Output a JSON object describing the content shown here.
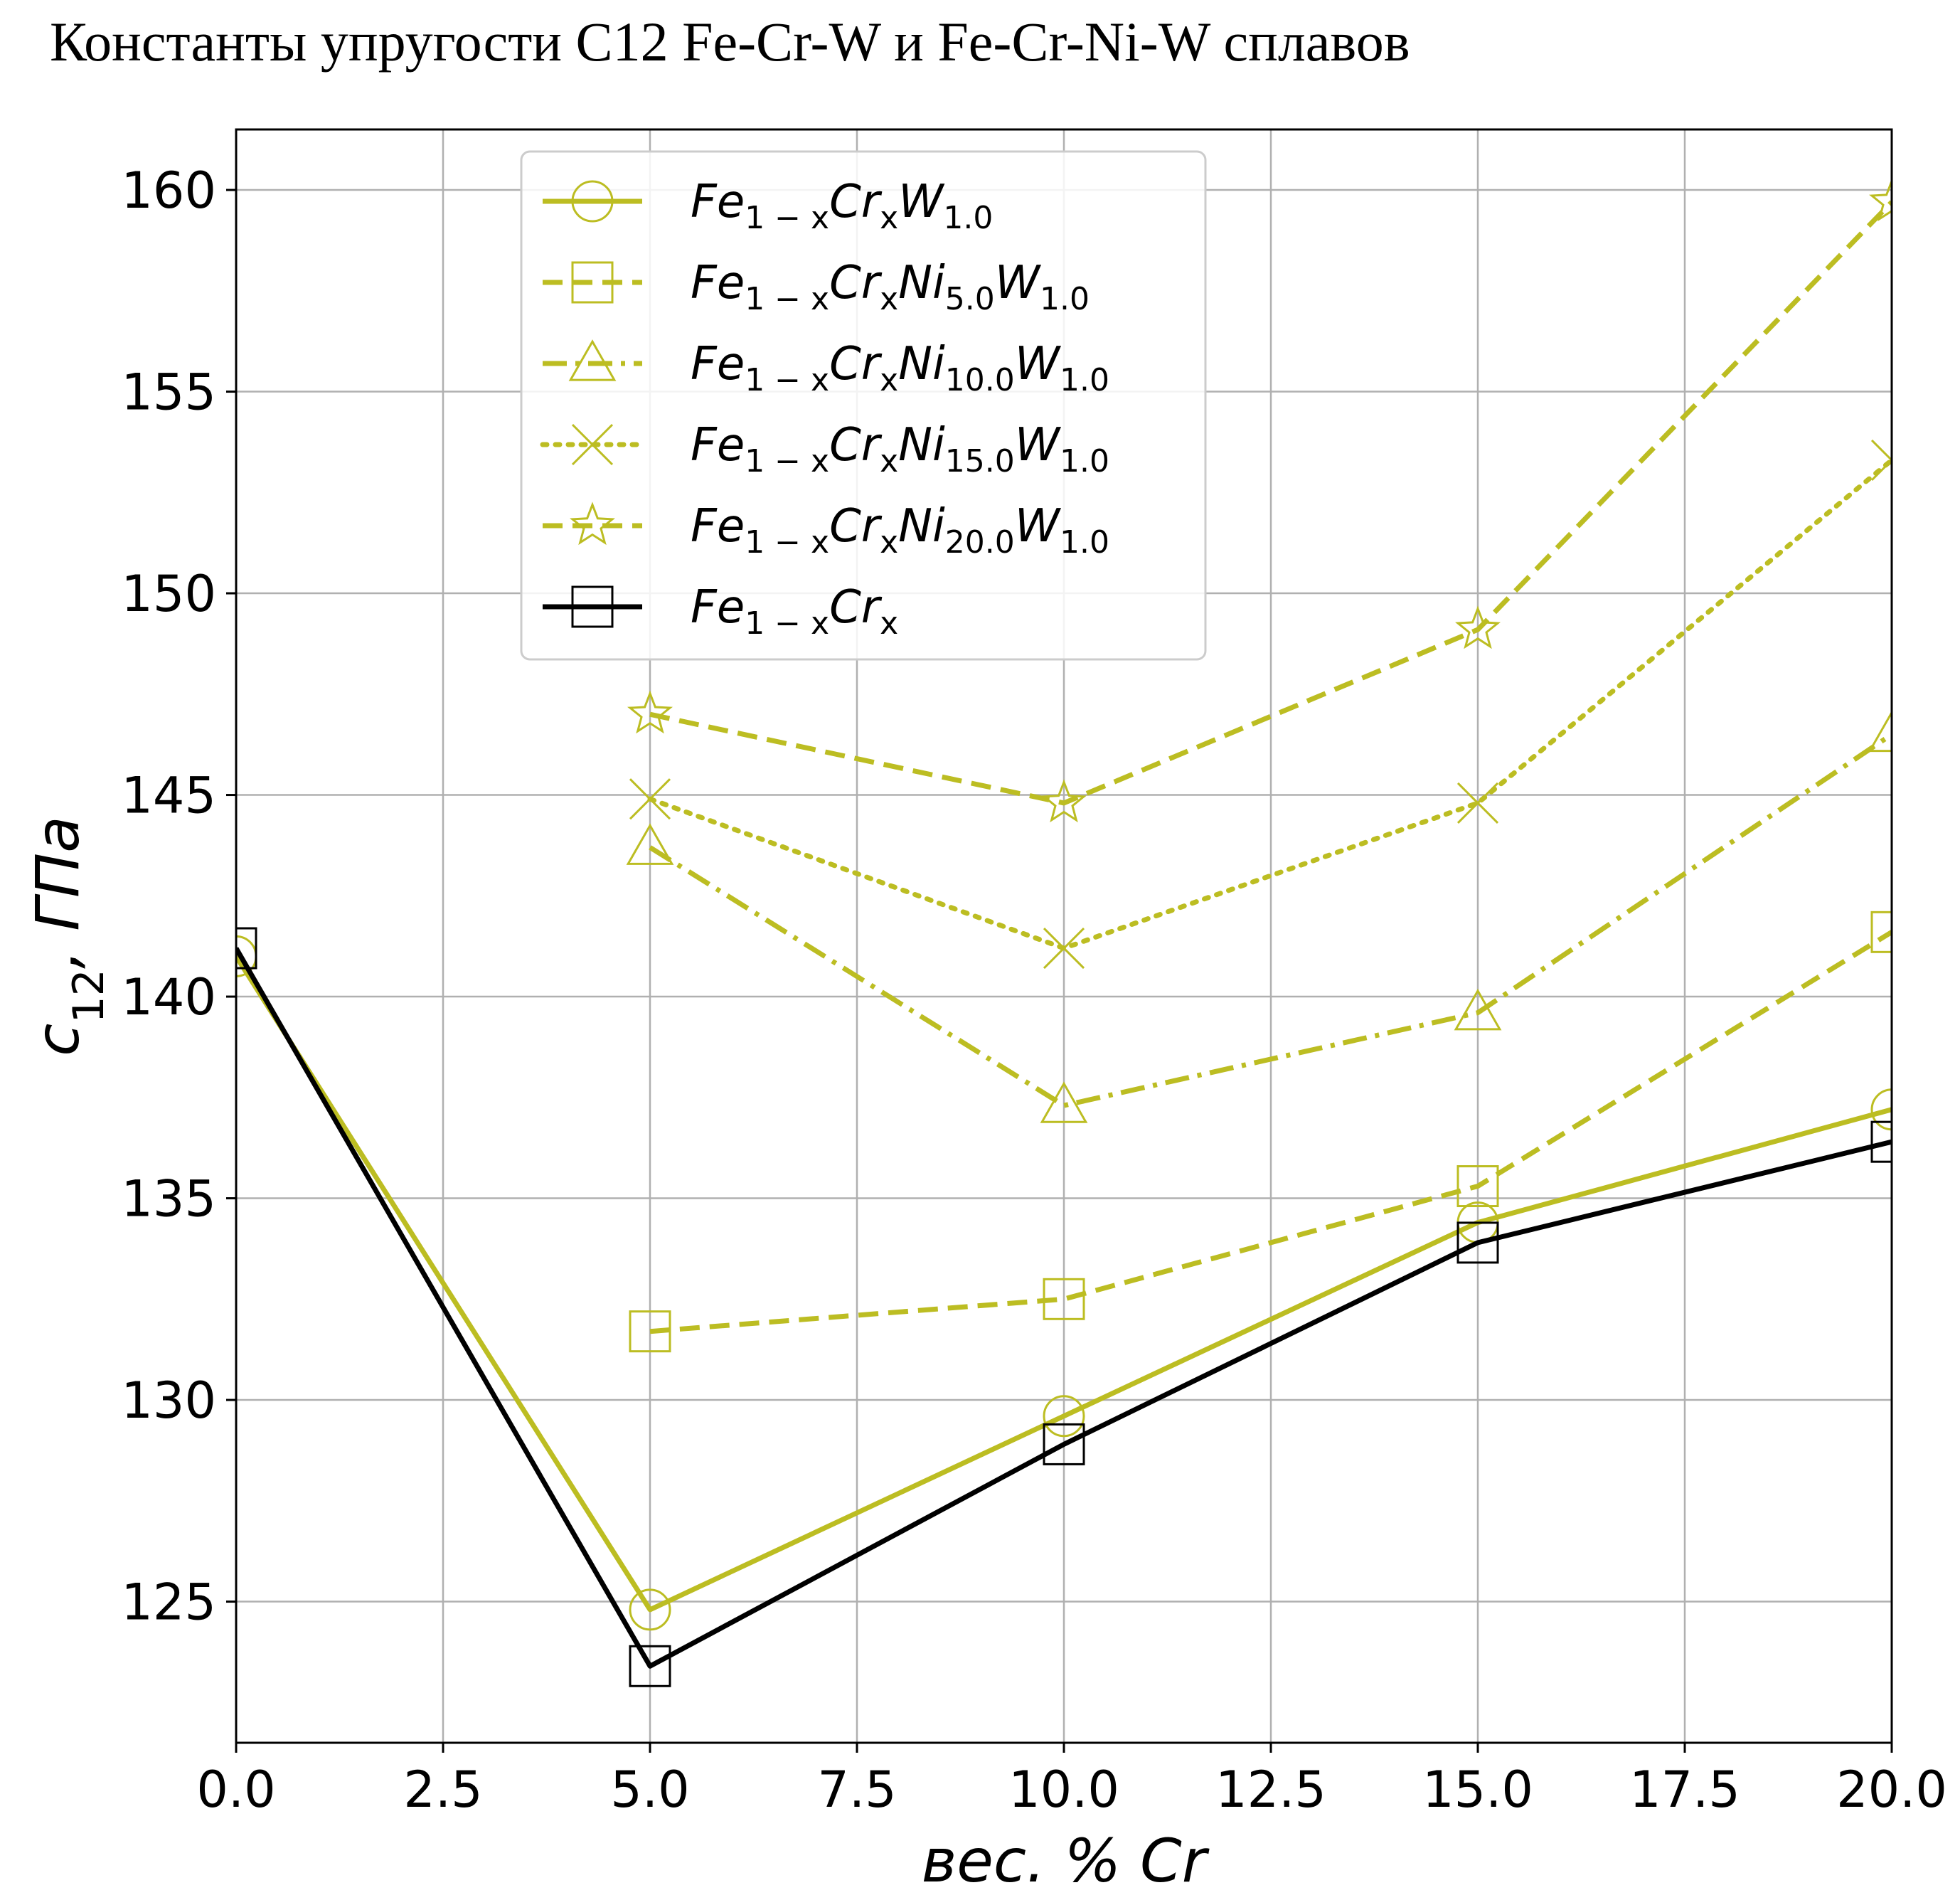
{
  "chart_data": {
    "type": "line",
    "title": "Константы упругости C12 Fe-Cr-W и Fe-Cr-Ni-W сплавов",
    "xlabel": "вес. % Cr",
    "ylabel": {
      "base": "c",
      "sub": "12",
      "rest": ",  ГПа"
    },
    "xlim": [
      0,
      20
    ],
    "ylim": [
      121.5,
      161.5
    ],
    "xticks": [
      "0.0",
      "2.5",
      "5.0",
      "7.5",
      "10.0",
      "12.5",
      "15.0",
      "17.5",
      "20.0"
    ],
    "xtick_values": [
      0,
      2.5,
      5,
      7.5,
      10,
      12.5,
      15,
      17.5,
      20
    ],
    "yticks": [
      "125",
      "130",
      "135",
      "140",
      "145",
      "150",
      "155",
      "160"
    ],
    "ytick_values": [
      125,
      130,
      135,
      140,
      145,
      150,
      155,
      160
    ],
    "grid": true,
    "legend_position": "top-center",
    "series": [
      {
        "name": "Fe1-xCrxW1.0",
        "label_parts": [
          [
            "Fe",
            ""
          ],
          [
            "1 − x",
            "sub"
          ],
          [
            "Cr",
            ""
          ],
          [
            "x",
            "sub"
          ],
          [
            "W",
            ""
          ],
          [
            "1.0",
            "sub"
          ]
        ],
        "color": "#bcbd22",
        "dash": "solid",
        "marker": "circle",
        "x": [
          0,
          5,
          10,
          15,
          20
        ],
        "y": [
          141.0,
          124.8,
          129.6,
          134.4,
          137.2
        ]
      },
      {
        "name": "Fe1-xCrxNi5.0W1.0",
        "label_parts": [
          [
            "Fe",
            ""
          ],
          [
            "1 − x",
            "sub"
          ],
          [
            "Cr",
            ""
          ],
          [
            "x",
            "sub"
          ],
          [
            "Ni",
            ""
          ],
          [
            "5.0",
            "sub"
          ],
          [
            "W",
            ""
          ],
          [
            "1.0",
            "sub"
          ]
        ],
        "color": "#bcbd22",
        "dash": "dashed",
        "marker": "square",
        "x": [
          5,
          10,
          15,
          20
        ],
        "y": [
          131.7,
          132.5,
          135.3,
          141.6
        ]
      },
      {
        "name": "Fe1-xCrxNi10.0W1.0",
        "label_parts": [
          [
            "Fe",
            ""
          ],
          [
            "1 − x",
            "sub"
          ],
          [
            "Cr",
            ""
          ],
          [
            "x",
            "sub"
          ],
          [
            "Ni",
            ""
          ],
          [
            "10.0",
            "sub"
          ],
          [
            "W",
            ""
          ],
          [
            "1.0",
            "sub"
          ]
        ],
        "color": "#bcbd22",
        "dash": "dashdot",
        "marker": "triangle",
        "x": [
          5,
          10,
          15,
          20
        ],
        "y": [
          143.7,
          137.3,
          139.6,
          146.5
        ]
      },
      {
        "name": "Fe1-xCrxNi15.0W1.0",
        "label_parts": [
          [
            "Fe",
            ""
          ],
          [
            "1 − x",
            "sub"
          ],
          [
            "Cr",
            ""
          ],
          [
            "x",
            "sub"
          ],
          [
            "Ni",
            ""
          ],
          [
            "15.0",
            "sub"
          ],
          [
            "W",
            ""
          ],
          [
            "1.0",
            "sub"
          ]
        ],
        "color": "#bcbd22",
        "dash": "dotted",
        "marker": "x",
        "x": [
          5,
          10,
          15,
          20
        ],
        "y": [
          144.9,
          141.2,
          144.8,
          153.3
        ]
      },
      {
        "name": "Fe1-xCrxNi20.0W1.0",
        "label_parts": [
          [
            "Fe",
            ""
          ],
          [
            "1 − x",
            "sub"
          ],
          [
            "Cr",
            ""
          ],
          [
            "x",
            "sub"
          ],
          [
            "Ni",
            ""
          ],
          [
            "20.0",
            "sub"
          ],
          [
            "W",
            ""
          ],
          [
            "1.0",
            "sub"
          ]
        ],
        "color": "#bcbd22",
        "dash": "dashed",
        "marker": "star",
        "x": [
          5,
          10,
          15,
          20
        ],
        "y": [
          147.0,
          144.8,
          149.1,
          159.7
        ]
      },
      {
        "name": "Fe1-xCrx",
        "label_parts": [
          [
            "Fe",
            ""
          ],
          [
            "1 − x",
            "sub"
          ],
          [
            "Cr",
            ""
          ],
          [
            "x",
            "sub"
          ]
        ],
        "color": "#000000",
        "dash": "solid",
        "marker": "square",
        "x": [
          0,
          5,
          10,
          15,
          20
        ],
        "y": [
          141.2,
          123.4,
          128.9,
          133.9,
          136.4
        ]
      }
    ]
  }
}
